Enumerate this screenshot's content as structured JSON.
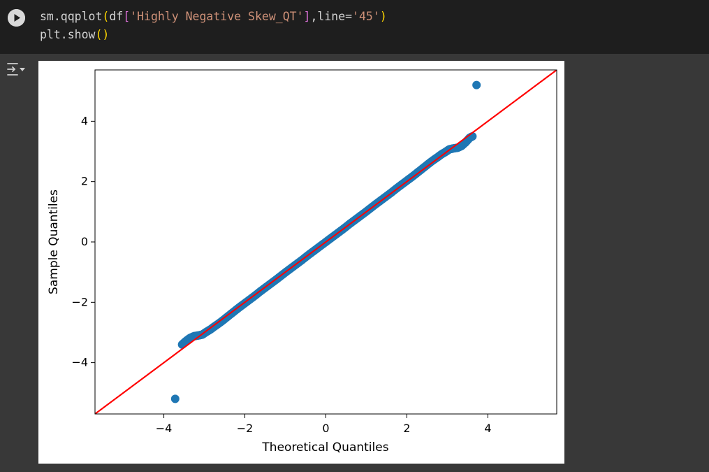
{
  "code": {
    "line1": {
      "prefix": "sm.qqplot",
      "p_open": "(",
      "df": "df",
      "b_open": "[",
      "str": "'Highly Negative Skew_QT'",
      "b_close": "]",
      "mid": ",line=",
      "str2": "'45'",
      "p_close": ")"
    },
    "line2": {
      "prefix": "plt.show",
      "parens": "()"
    }
  },
  "icons": {
    "run": "play-circle-icon",
    "output_toggle": "output-collapse-icon"
  },
  "chart_data": {
    "type": "scatter",
    "xlabel": "Theoretical Quantiles",
    "ylabel": "Sample Quantiles",
    "xlim": [
      -5.7,
      5.7
    ],
    "ylim": [
      -5.7,
      5.7
    ],
    "xticks": [
      -4,
      -2,
      0,
      2,
      4
    ],
    "yticks": [
      -4,
      -2,
      0,
      2,
      4
    ],
    "xtick_labels": [
      "−4",
      "−2",
      "0",
      "2",
      "4"
    ],
    "ytick_labels": [
      "−4",
      "−2",
      "0",
      "2",
      "4"
    ],
    "grid": false,
    "point_color": "#1f77b4",
    "line_color": "#ff0000",
    "reference_line": "45-degree (y = x)",
    "points": [
      [
        -3.72,
        -5.2
      ],
      [
        -3.55,
        -3.4
      ],
      [
        -3.45,
        -3.28
      ],
      [
        -3.35,
        -3.18
      ],
      [
        -3.25,
        -3.12
      ],
      [
        -3.15,
        -3.1
      ],
      [
        -3.05,
        -3.07
      ],
      [
        -2.95,
        -2.98
      ],
      [
        -2.85,
        -2.9
      ],
      [
        -2.75,
        -2.8
      ],
      [
        -2.6,
        -2.66
      ],
      [
        -2.45,
        -2.5
      ],
      [
        -2.3,
        -2.34
      ],
      [
        -2.15,
        -2.18
      ],
      [
        -2.0,
        -2.03
      ],
      [
        -1.8,
        -1.83
      ],
      [
        -1.6,
        -1.62
      ],
      [
        -1.4,
        -1.42
      ],
      [
        -1.2,
        -1.22
      ],
      [
        -1.0,
        -1.01
      ],
      [
        -0.8,
        -0.81
      ],
      [
        -0.6,
        -0.61
      ],
      [
        -0.4,
        -0.4
      ],
      [
        -0.2,
        -0.2
      ],
      [
        0.0,
        0.0
      ],
      [
        0.2,
        0.2
      ],
      [
        0.4,
        0.4
      ],
      [
        0.6,
        0.61
      ],
      [
        0.8,
        0.81
      ],
      [
        1.0,
        1.01
      ],
      [
        1.2,
        1.22
      ],
      [
        1.4,
        1.42
      ],
      [
        1.6,
        1.62
      ],
      [
        1.8,
        1.83
      ],
      [
        2.0,
        2.03
      ],
      [
        2.15,
        2.18
      ],
      [
        2.3,
        2.34
      ],
      [
        2.45,
        2.5
      ],
      [
        2.6,
        2.66
      ],
      [
        2.75,
        2.8
      ],
      [
        2.85,
        2.9
      ],
      [
        2.95,
        2.98
      ],
      [
        3.05,
        3.07
      ],
      [
        3.15,
        3.1
      ],
      [
        3.25,
        3.12
      ],
      [
        3.35,
        3.18
      ],
      [
        3.45,
        3.3
      ],
      [
        3.55,
        3.45
      ],
      [
        3.62,
        3.5
      ],
      [
        3.72,
        5.2
      ]
    ]
  }
}
